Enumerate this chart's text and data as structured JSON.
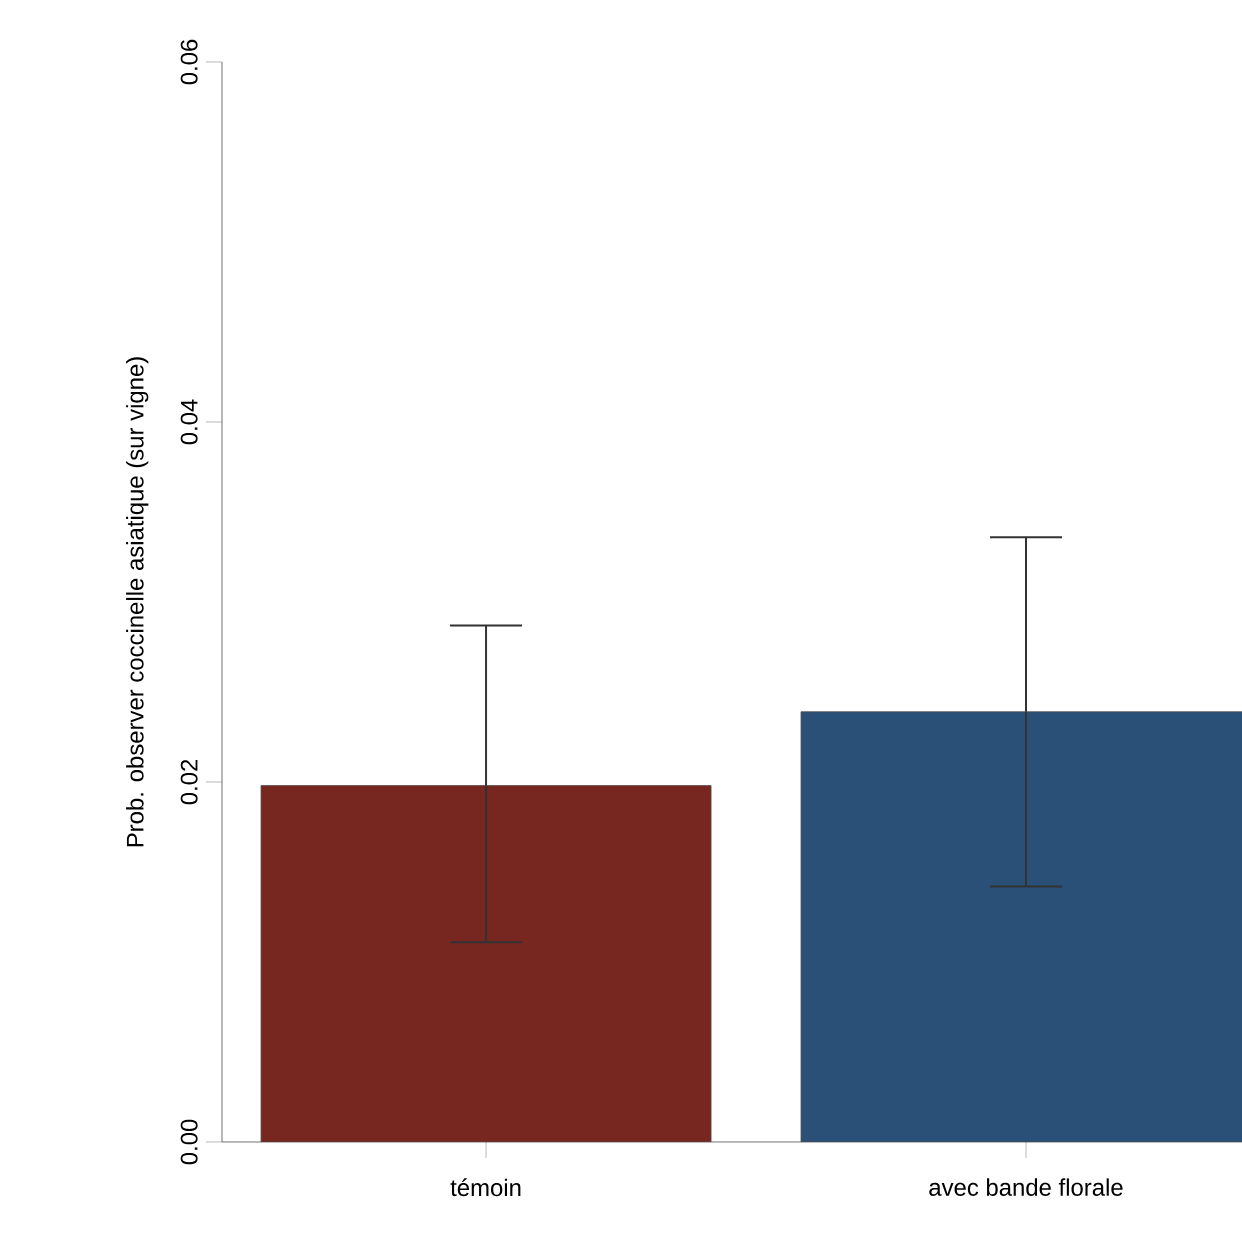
{
  "chart_data": {
    "type": "bar",
    "ylabel": "Prob. observer coccinelle asiatique (sur vigne)",
    "categories": [
      "témoin",
      "avec bande florale"
    ],
    "values": [
      0.0198,
      0.0239
    ],
    "colors": [
      "#772620",
      "#2a5078"
    ],
    "errors": [
      [
        0.0111,
        0.0287
      ],
      [
        0.0142,
        0.0336
      ]
    ],
    "ylim": [
      0,
      0.06
    ],
    "yticks": [
      {
        "value": 0,
        "label": "0.00"
      },
      {
        "value": 0.02,
        "label": "0.02"
      },
      {
        "value": 0.04,
        "label": "0.04"
      },
      {
        "value": 0.06,
        "label": "0.06"
      }
    ],
    "grid": false
  }
}
